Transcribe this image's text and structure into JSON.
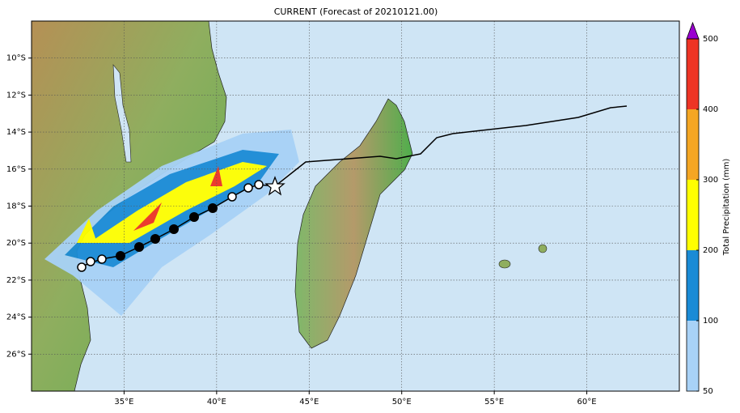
{
  "title": "CURRENT (Forecast of 20210121.00)",
  "map": {
    "xlim": [
      30,
      65
    ],
    "ylim": [
      -28,
      -8
    ],
    "lon_ticks": [
      {
        "value": 35,
        "label": "35°E"
      },
      {
        "value": 40,
        "label": "40°E"
      },
      {
        "value": 45,
        "label": "45°E"
      },
      {
        "value": 50,
        "label": "50°E"
      },
      {
        "value": 55,
        "label": "55°E"
      },
      {
        "value": 60,
        "label": "60°E"
      }
    ],
    "lat_ticks": [
      {
        "value": -10,
        "label": "10°S"
      },
      {
        "value": -12,
        "label": "12°S"
      },
      {
        "value": -14,
        "label": "14°S"
      },
      {
        "value": -16,
        "label": "16°S"
      },
      {
        "value": -18,
        "label": "18°S"
      },
      {
        "value": -20,
        "label": "20°S"
      },
      {
        "value": -22,
        "label": "22°S"
      },
      {
        "value": -24,
        "label": "24°S"
      },
      {
        "value": -26,
        "label": "26°S"
      }
    ]
  },
  "colorbar": {
    "label": "Total Precipitation (mm)",
    "ticks": [
      50,
      100,
      200,
      300,
      400,
      500
    ],
    "colors": [
      "#a8d2f7",
      "#1a8bd6",
      "#ffff00",
      "#f5a623",
      "#ee3424"
    ],
    "extend_color": "#9a00d0"
  }
}
